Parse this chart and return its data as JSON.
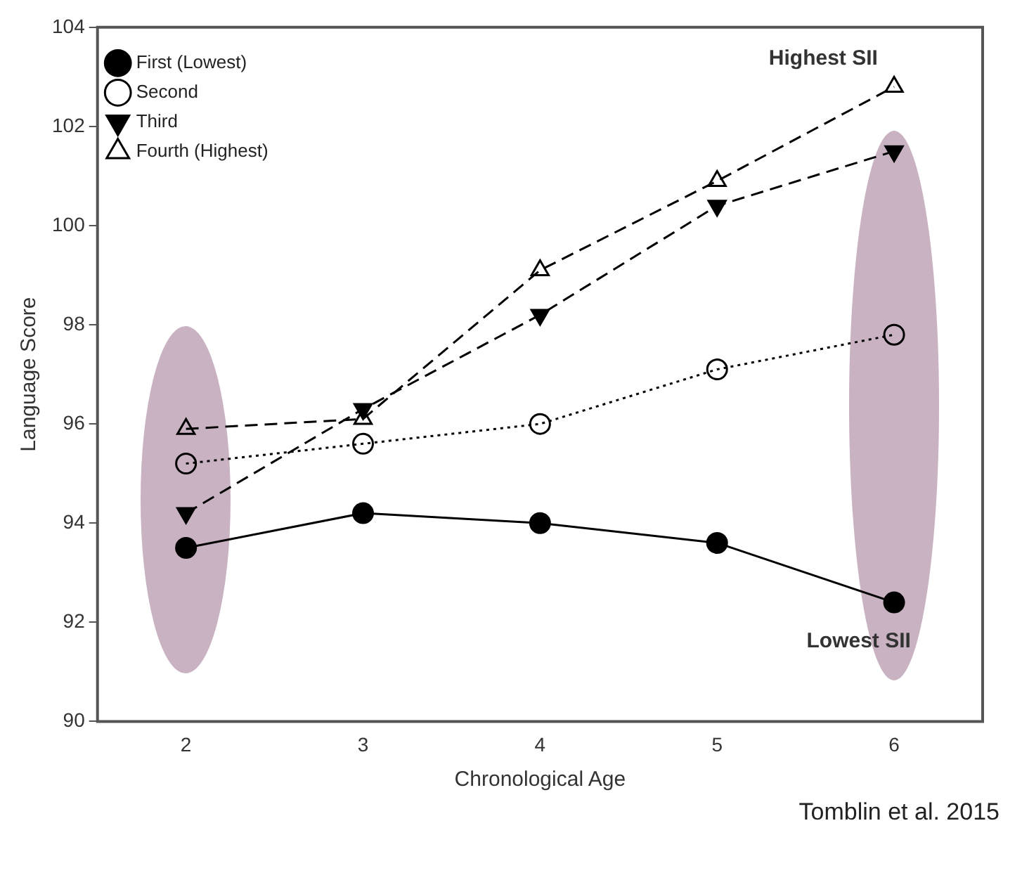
{
  "chart_data": {
    "type": "line",
    "xlabel": "Chronological Age",
    "ylabel": "Language Score",
    "x": [
      2,
      3,
      4,
      5,
      6
    ],
    "xlim": [
      1.5,
      6.5
    ],
    "xticks": [
      2,
      3,
      4,
      5,
      6
    ],
    "ylim": [
      90,
      104
    ],
    "yticks": [
      90,
      92,
      94,
      96,
      98,
      100,
      102,
      104
    ],
    "grid": false,
    "legend": "top left",
    "series": [
      {
        "name": "First (Lowest)",
        "color": "#000000",
        "marker": "circle",
        "line_style": "solid",
        "values": [
          93.5,
          94.2,
          94.0,
          93.6,
          92.4
        ]
      },
      {
        "name": "Second",
        "color": "#000000",
        "marker": "circle",
        "line_style": "dotted",
        "values": [
          95.2,
          95.6,
          96.0,
          97.1,
          97.8
        ]
      },
      {
        "name": "Third",
        "color": "#000000",
        "marker": "triangle",
        "line_style": "dashed",
        "values": [
          94.2,
          96.3,
          98.2,
          100.4,
          101.5
        ]
      },
      {
        "name": "Fourth (Highest)",
        "color": "#000000",
        "marker": "triangle",
        "line_style": "dashed",
        "values": [
          95.9,
          96.1,
          99.1,
          100.9,
          102.8
        ]
      }
    ],
    "annotations": [
      "Highest SII",
      "Lowest SII",
      "Tomblin et al. 2015"
    ]
  }
}
